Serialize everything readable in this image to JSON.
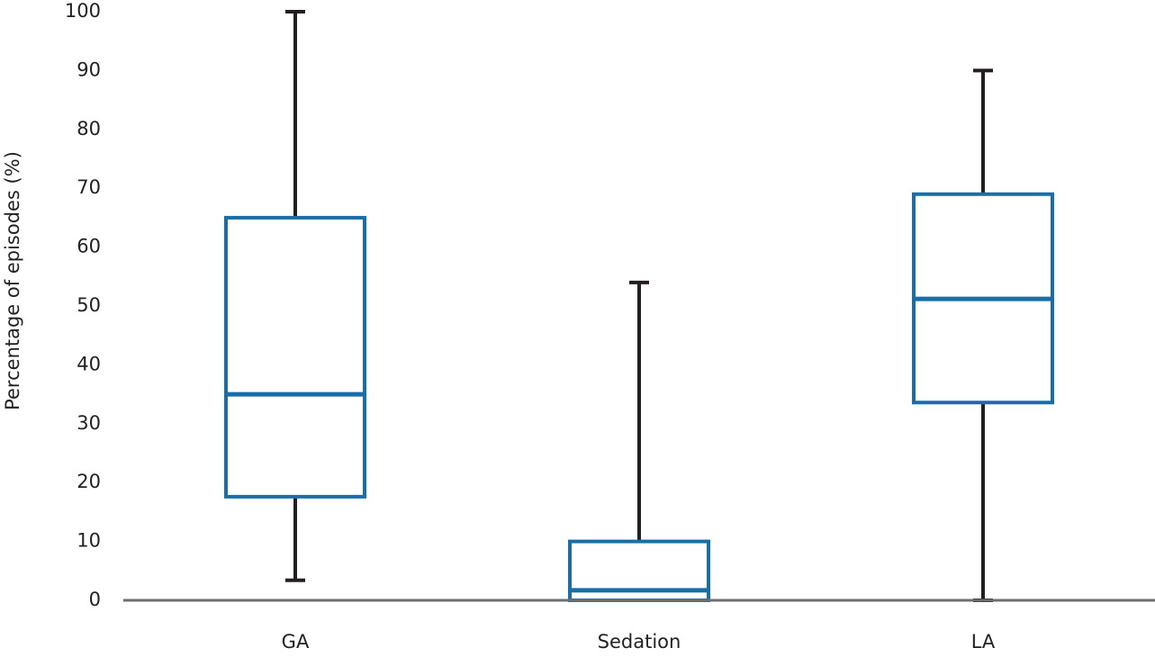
{
  "chart_data": {
    "type": "box",
    "y_label": "Percentage of episodes  (%)",
    "categories": [
      "GA",
      "Sedation",
      "LA"
    ],
    "min": [
      3.4,
      0,
      0
    ],
    "q1": [
      17.6,
      0,
      33.6
    ],
    "median": [
      35,
      1.7,
      51.2
    ],
    "q3": [
      65,
      10,
      69
    ],
    "max": [
      100,
      54,
      90
    ],
    "box_color": "#1a6ea8",
    "whisker_color": "#231f20",
    "ylim": [
      0,
      100
    ],
    "yticks": [
      0,
      10,
      20,
      30,
      40,
      50,
      60,
      70,
      80,
      90,
      100
    ],
    "grid": false
  }
}
